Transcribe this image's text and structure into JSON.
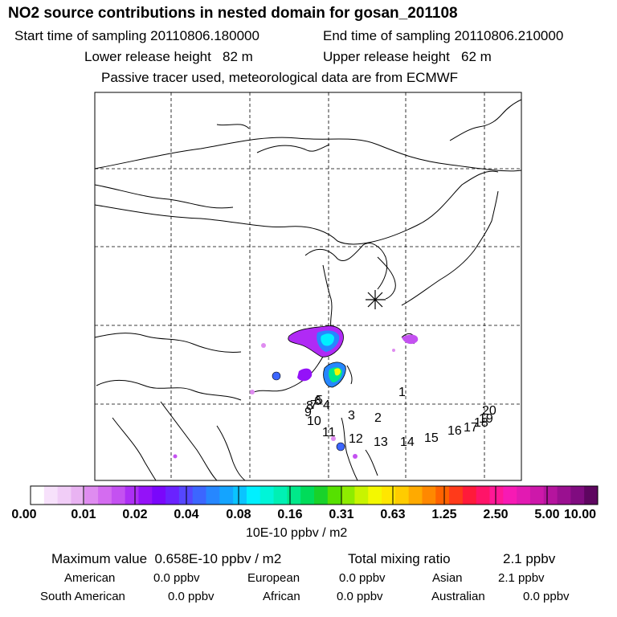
{
  "header": {
    "title": "NO2 source contributions in nested domain for gosan_201108",
    "start_label": "Start time of sampling 20110806.180000",
    "end_label": "End time of sampling 20110806.210000",
    "lower_label": "Lower release height   82 m",
    "upper_label": "Upper release height   62 m",
    "note": "Passive tracer used, meteorological data are from ECMWF"
  },
  "map": {
    "receptor_marker": "asterisk",
    "trajectory_labels": [
      "1",
      "2",
      "3",
      "4",
      "5",
      "6",
      "7",
      "8",
      "9",
      "10",
      "11",
      "12",
      "13",
      "14",
      "15",
      "16",
      "17",
      "18",
      "19",
      "20"
    ]
  },
  "colorbar": {
    "ticks": [
      "0.00",
      "0.01",
      "0.02",
      "0.04",
      "0.08",
      "0.16",
      "0.31",
      "0.63",
      "1.25",
      "2.50",
      "5.00",
      "10.00"
    ],
    "colors": [
      "#ffffff",
      "#f7e1fb",
      "#f1cdf7",
      "#e9b3f2",
      "#df8cf0",
      "#d46cf0",
      "#c451f1",
      "#ad2ff5",
      "#9412f8",
      "#7a07fb",
      "#6a22ff",
      "#5546ff",
      "#3c66ff",
      "#2687ff",
      "#14a4ff",
      "#0ac4ff",
      "#00f0ff",
      "#00f5d8",
      "#00f0b4",
      "#00e88a",
      "#00dc5a",
      "#19d22a",
      "#56e000",
      "#8eec00",
      "#c8f400",
      "#f4f800",
      "#ffe600",
      "#ffcc00",
      "#ffaa00",
      "#ff8800",
      "#ff6200",
      "#ff3a1a",
      "#ff1a3a",
      "#ff1468",
      "#ff1896",
      "#f71ab4",
      "#e21ab2",
      "#cd18aa",
      "#b5149e",
      "#9a1090",
      "#800c80",
      "#5e0660"
    ],
    "unit": "10E-10 ppbv / m2"
  },
  "summary": {
    "max_text": "Maximum value  0.658E-10 ppbv / m2",
    "total_text": "Total mixing ratio",
    "total_value": "2.1 ppbv",
    "american_label": "American",
    "american_value": "0.0 ppbv",
    "european_label": "European",
    "european_value": "0.0 ppbv",
    "asian_label": "Asian",
    "asian_value": "2.1 ppbv",
    "south_american_label": "South American",
    "south_american_value": "0.0 ppbv",
    "african_label": "African",
    "african_value": "0.0 ppbv",
    "australian_label": "Australian",
    "australian_value": "0.0 ppbv"
  }
}
